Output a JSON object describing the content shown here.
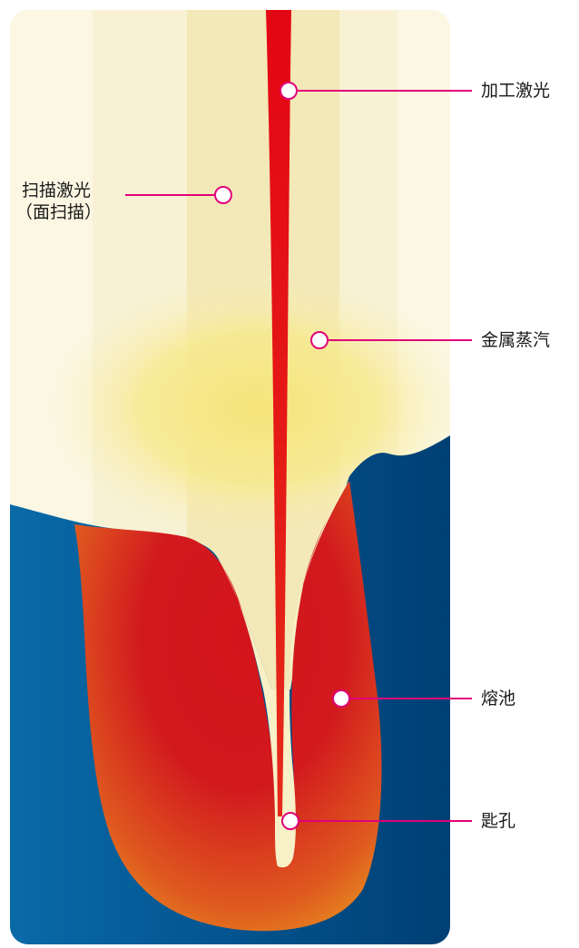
{
  "labels": {
    "process_laser": "加工激光",
    "scan_laser_line1": "扫描激光",
    "scan_laser_line2": "（面扫描）",
    "metal_vapor": "金属蒸汽",
    "melt_pool": "熔池",
    "keyhole": "匙孔"
  },
  "colors": {
    "callout": "#e0007a",
    "laser": "#e30613",
    "melt_pool_core": "#d3141c",
    "melt_pool_edge": "#e8951f",
    "metal_dark": "#003f73",
    "metal_light": "#0a6aa8",
    "vapor_glow": "#f6e57a",
    "scan_band": "#f5eecb"
  }
}
